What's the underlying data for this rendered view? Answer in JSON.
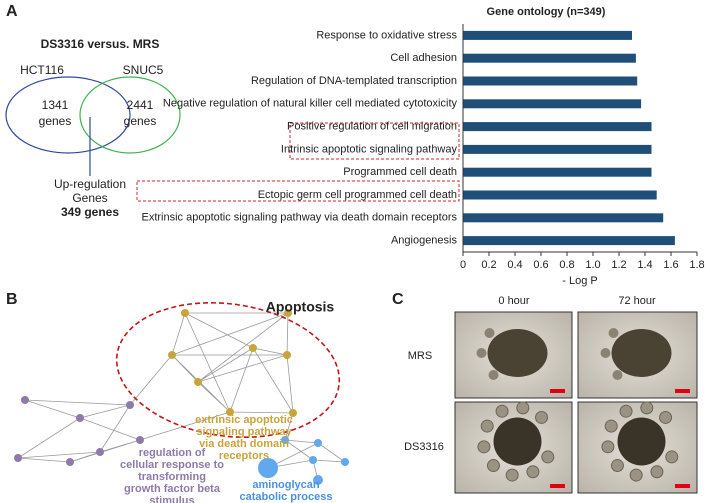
{
  "panels": {
    "a": "A",
    "b": "B",
    "c": "C"
  },
  "venn": {
    "title": "DS3316 versus. MRS",
    "sets": [
      {
        "name": "HCT116",
        "count": 1341,
        "unit": "genes"
      },
      {
        "name": "SNUC5",
        "count": 2441,
        "unit": "genes"
      }
    ],
    "overlap": {
      "label_lines": [
        "Up-regulation",
        "Genes"
      ],
      "count_text": "349 genes"
    }
  },
  "chart_data": {
    "type": "hbar",
    "title": "Gene ontology (n=349)",
    "categories": [
      "Response to oxidative stress",
      "Cell adhesion",
      "Regulation of DNA-templated transcription",
      "Negative regulation of natural killer cell mediated cytotoxicity",
      "Positive regulation of cell migration",
      "Intrinsic apoptotic signaling pathway",
      "Programmed cell death",
      "Ectopic germ cell programmed cell death",
      "Extrinsic apoptotic signaling pathway via death domain receptors",
      "Angiogenesis"
    ],
    "values": [
      1.3,
      1.33,
      1.34,
      1.37,
      1.45,
      1.45,
      1.45,
      1.49,
      1.54,
      1.63
    ],
    "color": "#1f4e79",
    "xlim": [
      0,
      1.8
    ],
    "xticks": [
      0,
      0.2,
      0.4,
      0.6,
      0.8,
      {
        "value": 1,
        "label": "1.0"
      },
      1.2,
      1.4,
      1.6,
      1.8
    ],
    "xlabel": "- Log P"
  },
  "network": {
    "title": "Apoptosis",
    "clusters": [
      {
        "label_lines": [
          "extrinsic apoptotic",
          "signaling pathway",
          "via death domain",
          "receptors"
        ]
      },
      {
        "label_lines": [
          "regulation of",
          "cellular response to",
          "transforming",
          "growth factor beta",
          "stimulus"
        ]
      },
      {
        "label_lines": [
          "aminoglycan",
          "catabolic process"
        ]
      }
    ]
  },
  "images": {
    "columns": [
      "0 hour",
      "72 hour"
    ],
    "rows": [
      "MRS",
      "DS3316"
    ]
  }
}
